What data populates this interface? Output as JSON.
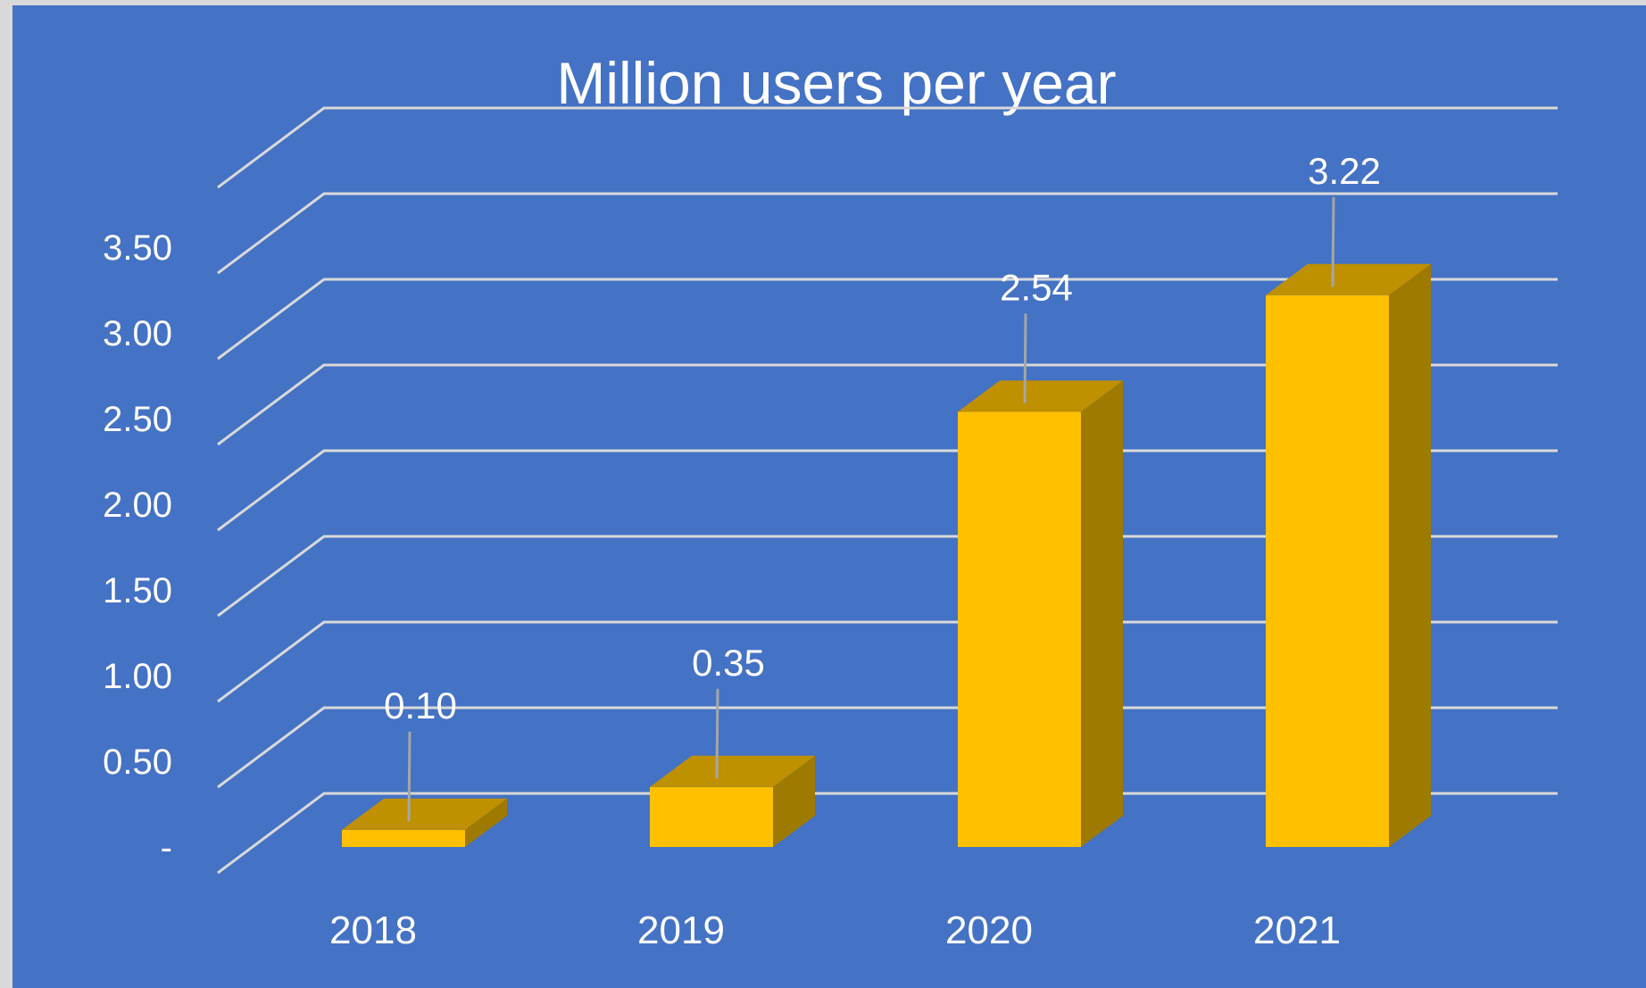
{
  "chart_data": {
    "type": "bar",
    "style": "3d-column",
    "title": "Million users per year",
    "categories": [
      "2018",
      "2019",
      "2020",
      "2021"
    ],
    "values": [
      0.1,
      0.35,
      2.54,
      3.22
    ],
    "data_labels": [
      "0.10",
      "0.35",
      "2.54",
      "3.22"
    ],
    "y_tick_labels": [
      "-",
      "0.50",
      "1.00",
      "1.50",
      "2.00",
      "2.50",
      "3.00",
      "3.50"
    ],
    "y_ticks": [
      0,
      0.5,
      1.0,
      1.5,
      2.0,
      2.5,
      3.0,
      3.5
    ],
    "ylim": [
      0,
      3.5
    ],
    "xlabel": "",
    "ylabel": "",
    "grid": true,
    "legend": "none"
  },
  "colors": {
    "background": "#4472c4",
    "bar_front": "#ffc000",
    "bar_top": "#bf9000",
    "bar_side": "#9e7a00",
    "gridline": "#d9d9d9",
    "text": "#ffffff",
    "leader": "#a6a6a6"
  }
}
